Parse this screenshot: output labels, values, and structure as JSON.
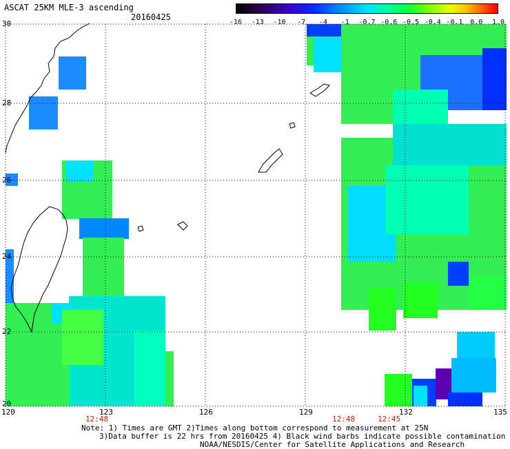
{
  "header": {
    "title": "ASCAT 25KM MLE-3 ascending",
    "date": "20160425"
  },
  "colorbar": {
    "labels": [
      "-16",
      "-13",
      "-10",
      "-7",
      "-4",
      "-1",
      "-0.7",
      "-0.6",
      "-0.5",
      "-0.4",
      "-0.1",
      "0.0",
      "1.0"
    ]
  },
  "map": {
    "lon_labels": [
      "120",
      "123",
      "126",
      "129",
      "132",
      "135"
    ],
    "lat_labels": [
      "30",
      "28",
      "26",
      "24",
      "22",
      "20"
    ],
    "time_labels": [
      "12:48",
      "12:48",
      "12:45"
    ],
    "swath_colors": {
      "blue": "#1a8cff",
      "deep_blue": "#0030ff",
      "purple": "#5a00b0",
      "cyan": "#00e0ff",
      "aqua": "#00ffb0",
      "green": "#22ff22"
    }
  },
  "footer": {
    "note_line1": "Note: 1) Times are GMT 2)Times along bottom correspond to measurement at 25N",
    "note_line2": "3)Data buffer is 22 hrs from 20160425 4) Black wind barbs indicate possible contamination",
    "credit": "NOAA/NESDIS/Center for Satellite Applications and Research"
  }
}
